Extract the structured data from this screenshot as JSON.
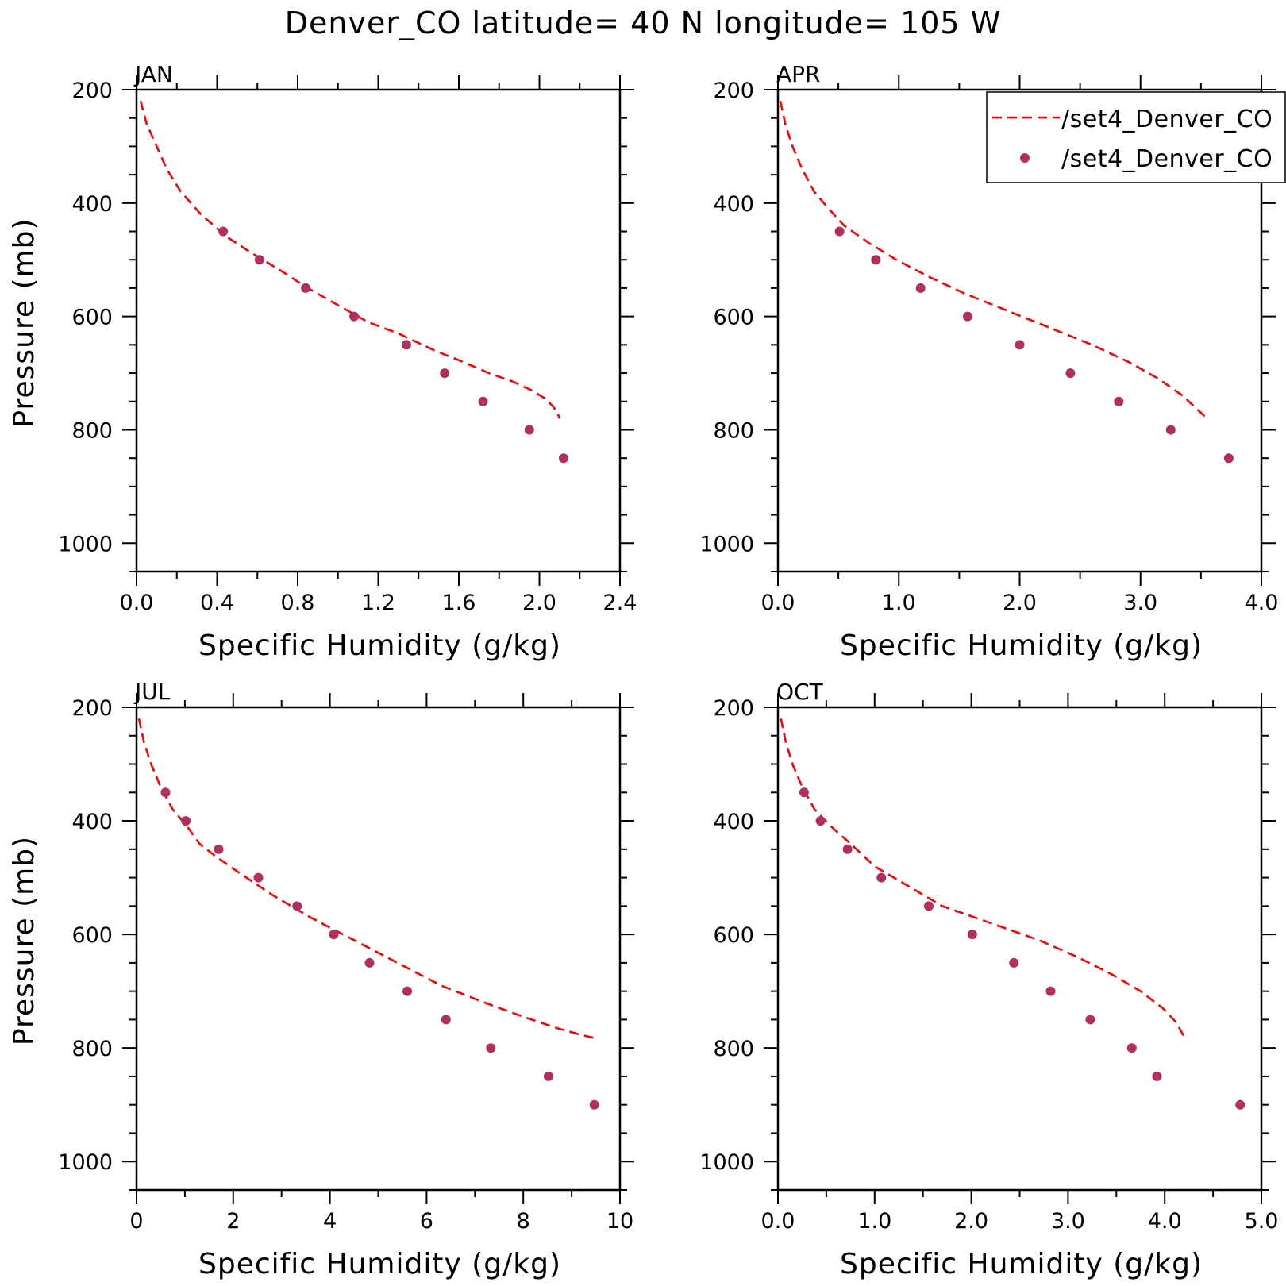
{
  "title": "Denver_CO  latitude= 40 N longitude= 105 W",
  "legend": {
    "model_label": "/set4_Denver_CO",
    "obs_label": "/set4_Denver_CO"
  },
  "colors": {
    "model_line": "#ff0000",
    "obs_marker": "#b22e5e"
  },
  "chart_data": [
    {
      "type": "line",
      "panel": "JAN",
      "xlabel": "Specific Humidity (g/kg)",
      "ylabel": "Pressure (mb)",
      "xlim": [
        0,
        2.4
      ],
      "ylim": [
        1050,
        200
      ],
      "y_reversed": true,
      "xticks": [
        "0.0",
        "0.4",
        "0.8",
        "1.2",
        "1.6",
        "2.0",
        "2.4"
      ],
      "yticks": [
        "200",
        "400",
        "600",
        "800",
        "1000"
      ],
      "series": [
        {
          "name": "/set4_Denver_CO",
          "style": "dashed-line",
          "x": [
            0.02,
            0.05,
            0.1,
            0.15,
            0.22,
            0.32,
            0.45,
            0.58,
            0.72,
            0.85,
            1.0,
            1.15,
            1.3,
            1.48,
            1.62,
            1.75,
            1.87,
            1.96,
            2.03,
            2.07,
            2.09,
            2.1
          ],
          "y": [
            220,
            260,
            300,
            340,
            380,
            420,
            460,
            490,
            520,
            550,
            580,
            610,
            630,
            660,
            680,
            700,
            715,
            730,
            745,
            760,
            770,
            780
          ]
        },
        {
          "name": "/set4_Denver_CO",
          "style": "markers",
          "x": [
            0.43,
            0.61,
            0.84,
            1.08,
            1.34,
            1.53,
            1.72,
            1.95,
            2.12
          ],
          "y": [
            450,
            500,
            550,
            600,
            650,
            700,
            750,
            800,
            850
          ]
        }
      ]
    },
    {
      "type": "line",
      "panel": "APR",
      "xlabel": "Specific Humidity (g/kg)",
      "ylabel": "",
      "xlim": [
        0,
        4.0
      ],
      "ylim": [
        1050,
        200
      ],
      "y_reversed": true,
      "xticks": [
        "0.0",
        "1.0",
        "2.0",
        "3.0",
        "4.0"
      ],
      "yticks": [
        "200",
        "400",
        "600",
        "800",
        "1000"
      ],
      "series": [
        {
          "name": "/set4_Denver_CO",
          "style": "dashed-line",
          "x": [
            0.02,
            0.06,
            0.12,
            0.2,
            0.3,
            0.42,
            0.55,
            0.75,
            0.98,
            1.25,
            1.55,
            1.9,
            2.25,
            2.6,
            2.9,
            3.15,
            3.35,
            3.5,
            3.55
          ],
          "y": [
            220,
            260,
            300,
            340,
            380,
            410,
            440,
            470,
            500,
            530,
            560,
            590,
            620,
            650,
            680,
            710,
            740,
            770,
            780
          ]
        },
        {
          "name": "/set4_Denver_CO",
          "style": "markers",
          "x": [
            0.51,
            0.81,
            1.18,
            1.57,
            2.0,
            2.42,
            2.82,
            3.25,
            3.73
          ],
          "y": [
            450,
            500,
            550,
            600,
            650,
            700,
            750,
            800,
            850
          ]
        }
      ]
    },
    {
      "type": "line",
      "panel": "JUL",
      "xlabel": "Specific Humidity (g/kg)",
      "ylabel": "Pressure (mb)",
      "xlim": [
        0,
        10
      ],
      "ylim": [
        1050,
        200
      ],
      "y_reversed": true,
      "xticks": [
        "0",
        "2",
        "4",
        "6",
        "8",
        "10"
      ],
      "yticks": [
        "200",
        "400",
        "600",
        "800",
        "1000"
      ],
      "series": [
        {
          "name": "/set4_Denver_CO",
          "style": "dashed-line",
          "x": [
            0.05,
            0.15,
            0.3,
            0.5,
            0.75,
            1.05,
            1.3,
            1.6,
            2.1,
            2.8,
            3.6,
            4.5,
            5.4,
            6.3,
            7.2,
            8.0,
            8.7,
            9.2,
            9.45
          ],
          "y": [
            220,
            260,
            300,
            340,
            380,
            410,
            440,
            460,
            490,
            530,
            570,
            610,
            650,
            690,
            720,
            745,
            765,
            777,
            782
          ]
        },
        {
          "name": "/set4_Denver_CO",
          "style": "markers",
          "x": [
            0.6,
            1.02,
            1.7,
            2.52,
            3.32,
            4.08,
            4.82,
            5.6,
            6.4,
            7.33,
            8.52,
            9.47
          ],
          "y": [
            350,
            400,
            450,
            500,
            550,
            600,
            650,
            700,
            750,
            800,
            850,
            900
          ]
        }
      ]
    },
    {
      "type": "line",
      "panel": "OCT",
      "xlabel": "Specific Humidity (g/kg)",
      "ylabel": "",
      "xlim": [
        0,
        5.0
      ],
      "ylim": [
        1050,
        200
      ],
      "y_reversed": true,
      "xticks": [
        "0.0",
        "1.0",
        "2.0",
        "3.0",
        "4.0",
        "5.0"
      ],
      "yticks": [
        "200",
        "400",
        "600",
        "800",
        "1000"
      ],
      "series": [
        {
          "name": "/set4_Denver_CO",
          "style": "dashed-line",
          "x": [
            0.03,
            0.08,
            0.15,
            0.25,
            0.38,
            0.55,
            0.75,
            1.0,
            1.3,
            1.7,
            2.2,
            2.7,
            3.1,
            3.45,
            3.75,
            3.98,
            4.12,
            4.2
          ],
          "y": [
            220,
            260,
            300,
            340,
            380,
            410,
            440,
            480,
            510,
            550,
            580,
            610,
            640,
            670,
            700,
            730,
            755,
            780
          ]
        },
        {
          "name": "/set4_Denver_CO",
          "style": "markers",
          "x": [
            0.27,
            0.44,
            0.72,
            1.07,
            1.56,
            2.01,
            2.44,
            2.82,
            3.23,
            3.66,
            3.92,
            4.78
          ],
          "y": [
            350,
            400,
            450,
            500,
            550,
            600,
            650,
            700,
            750,
            800,
            850,
            900
          ]
        }
      ]
    }
  ]
}
